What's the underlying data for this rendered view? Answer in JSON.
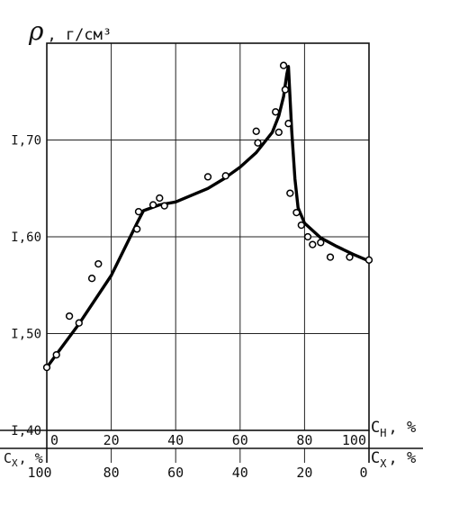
{
  "chart_data": {
    "type": "line",
    "title": "",
    "ylabel": {
      "symbol": "ρ",
      "unit": ", г/см³"
    },
    "top_axis": {
      "label": "C",
      "subscript": "Н",
      "unit": ", %",
      "range": [
        0,
        100
      ],
      "ticks": [
        0,
        20,
        40,
        60,
        80,
        100
      ],
      "tick_labels": [
        "0",
        "20",
        "40",
        "60",
        "80",
        "100"
      ]
    },
    "bottom_axis": {
      "label": "C",
      "subscript": "Х",
      "unit": ", %",
      "left_label": "C",
      "left_subscript": "Х",
      "left_unit": ", %",
      "range": [
        100,
        0
      ],
      "ticks": [
        100,
        80,
        60,
        40,
        20,
        0
      ],
      "tick_labels": [
        "100",
        "80",
        "60",
        "40",
        "20",
        "0"
      ]
    },
    "y_axis": {
      "range": [
        1.4,
        1.8
      ],
      "ticks": [
        1.4,
        1.5,
        1.6,
        1.7
      ],
      "tick_labels": [
        "I,40",
        "I,50",
        "I,60",
        "I,70"
      ]
    },
    "grid": true,
    "series": [
      {
        "kind": "curve",
        "x": [
          0,
          10,
          20,
          28,
          30,
          35,
          40,
          45,
          50,
          55,
          60,
          65,
          70,
          72,
          73.5,
          74.5,
          75,
          76,
          77,
          78,
          80,
          85,
          90,
          95,
          100
        ],
        "y": [
          1.465,
          1.51,
          1.56,
          1.614,
          1.627,
          1.633,
          1.636,
          1.643,
          1.65,
          1.66,
          1.672,
          1.687,
          1.708,
          1.725,
          1.745,
          1.768,
          1.776,
          1.71,
          1.66,
          1.63,
          1.614,
          1.599,
          1.59,
          1.582,
          1.575
        ]
      },
      {
        "kind": "points",
        "x": [
          0,
          3,
          7,
          10,
          14,
          16,
          28,
          28.5,
          33,
          35,
          36.5,
          50,
          55.5,
          65,
          65.5,
          71,
          72,
          73.5,
          74,
          75,
          75.5,
          77.5,
          79,
          81,
          82.5,
          85,
          88,
          94,
          100
        ],
        "y": [
          1.465,
          1.478,
          1.518,
          1.511,
          1.557,
          1.572,
          1.608,
          1.626,
          1.633,
          1.64,
          1.632,
          1.662,
          1.663,
          1.709,
          1.697,
          1.729,
          1.708,
          1.777,
          1.752,
          1.717,
          1.645,
          1.625,
          1.612,
          1.6,
          1.592,
          1.594,
          1.579,
          1.579,
          1.576
        ]
      }
    ]
  }
}
